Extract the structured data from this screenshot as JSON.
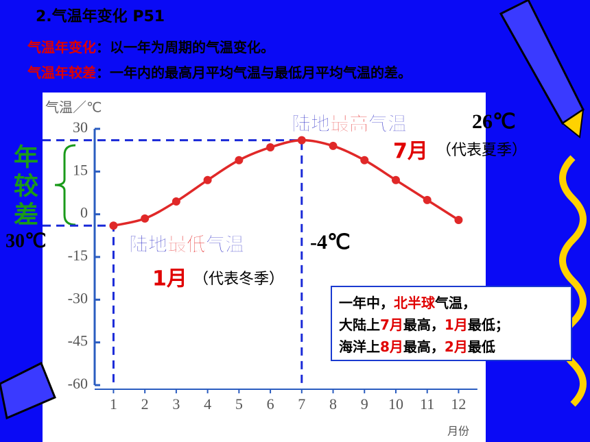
{
  "header": {
    "title": "2.气温年变化 P51"
  },
  "definitions": [
    {
      "term": "气温年变化",
      "text": "：以一年为周期的气温变化。"
    },
    {
      "term": "气温年较差",
      "text": "：一年内的最高月平均气温与最低月平均气温的差。"
    }
  ],
  "annotations": {
    "range_label": "年较差",
    "range_value": "30℃",
    "high": {
      "parts": [
        "陆地",
        "最高",
        "气温"
      ],
      "value": "26℃",
      "month": "7月",
      "season": "（代表夏季）"
    },
    "low": {
      "parts": [
        "陆地",
        "最低",
        "气温"
      ],
      "value": "-4℃",
      "month": "1月",
      "season": "（代表冬季）"
    }
  },
  "note": {
    "lines": [
      [
        "一年中，",
        "北半球",
        "气温，"
      ],
      [
        "大陆上",
        "7月",
        "最高，",
        "1月",
        "最低；"
      ],
      [
        "海洋上",
        "8月",
        "最高，",
        "2月",
        "最低"
      ]
    ]
  },
  "chart_data": {
    "type": "line",
    "y_label": "气温／℃",
    "x_label": "月份",
    "x": [
      1,
      2,
      3,
      4,
      5,
      6,
      7,
      8,
      9,
      10,
      11,
      12
    ],
    "series": [
      {
        "color": "#e02828",
        "values": [
          -4,
          -1.5,
          4.5,
          12,
          19,
          23.5,
          26,
          24,
          19,
          12,
          5,
          -2
        ]
      }
    ],
    "xlim": [
      0.4,
      12.6
    ],
    "xticks": [
      1,
      2,
      3,
      4,
      5,
      6,
      7,
      8,
      9,
      10,
      11,
      12
    ],
    "ylim": [
      -60,
      30
    ],
    "yticks": [
      -60,
      -45,
      -30,
      -15,
      0,
      15,
      30
    ]
  }
}
